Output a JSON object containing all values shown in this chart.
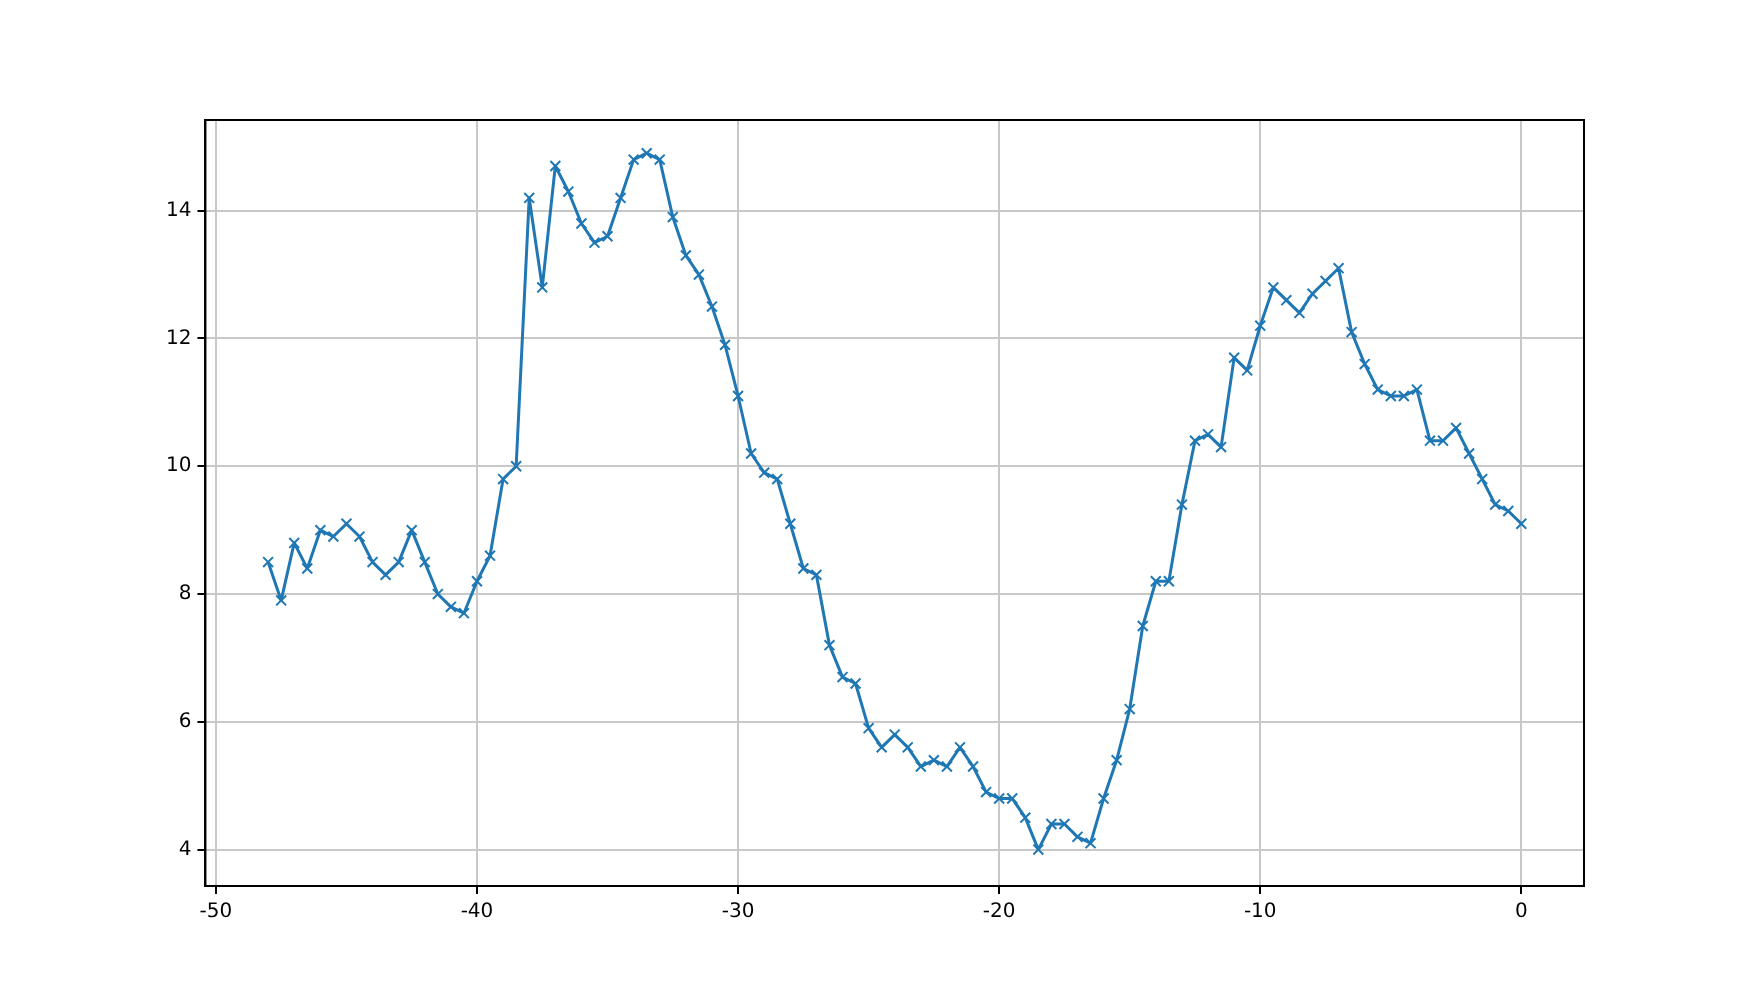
{
  "chart_data": {
    "type": "line",
    "marker": "cross",
    "grid": true,
    "x": [
      -48,
      -47.5,
      -47,
      -46.5,
      -46,
      -45.5,
      -45,
      -44.5,
      -44,
      -43.5,
      -43,
      -42.5,
      -42,
      -41.5,
      -41,
      -40.5,
      -40,
      -39.5,
      -39,
      -38.5,
      -38,
      -37.5,
      -37,
      -36.5,
      -36,
      -35.5,
      -35,
      -34.5,
      -34,
      -33.5,
      -33,
      -32.5,
      -32,
      -31.5,
      -31,
      -30.5,
      -30,
      -29.5,
      -29,
      -28.5,
      -28,
      -27.5,
      -27,
      -26.5,
      -26,
      -25.5,
      -25,
      -24.5,
      -24,
      -23.5,
      -23,
      -22.5,
      -22,
      -21.5,
      -21,
      -20.5,
      -20,
      -19.5,
      -19,
      -18.5,
      -18,
      -17.5,
      -17,
      -16.5,
      -16,
      -15.5,
      -15,
      -14.5,
      -14,
      -13.5,
      -13,
      -12.5,
      -12,
      -11.5,
      -11,
      -10.5,
      -10,
      -9.5,
      -9,
      -8.5,
      -8,
      -7.5,
      -7,
      -6.5,
      -6,
      -5.5,
      -5,
      -4.5,
      -4,
      -3.5,
      -3,
      -2.5,
      -2,
      -1.5,
      -1,
      -0.5,
      0
    ],
    "series": [
      {
        "color": "#1f77b4",
        "values": [
          8.5,
          7.9,
          8.8,
          8.4,
          9.0,
          8.9,
          9.1,
          8.9,
          8.5,
          8.3,
          8.5,
          9.0,
          8.5,
          8.0,
          7.8,
          7.7,
          8.2,
          8.6,
          9.8,
          10.0,
          14.2,
          12.8,
          14.7,
          14.3,
          13.8,
          13.5,
          13.6,
          14.2,
          14.8,
          14.9,
          14.8,
          13.9,
          13.3,
          13.0,
          12.5,
          11.9,
          11.1,
          10.2,
          9.9,
          9.8,
          9.1,
          8.4,
          8.3,
          7.2,
          6.7,
          6.6,
          5.9,
          5.6,
          5.8,
          5.6,
          5.3,
          5.4,
          5.3,
          5.6,
          5.3,
          4.9,
          4.8,
          4.8,
          4.5,
          4.0,
          4.4,
          4.4,
          4.2,
          4.1,
          4.8,
          5.4,
          6.2,
          7.5,
          8.2,
          8.2,
          9.4,
          10.4,
          10.5,
          10.3,
          11.7,
          11.5,
          12.2,
          12.8,
          12.6,
          12.4,
          12.7,
          12.9,
          13.1,
          12.1,
          11.6,
          11.2,
          11.1,
          11.1,
          11.2,
          10.4,
          10.4,
          10.6,
          10.2,
          9.8,
          9.4,
          9.3,
          9.1
        ]
      }
    ],
    "xlim": [
      -50.4,
      2.4
    ],
    "xticks": [
      -50,
      -40,
      -30,
      -20,
      -10,
      0
    ],
    "ylim": [
      3.43,
      15.42
    ],
    "yticks": [
      4,
      6,
      8,
      10,
      12,
      14
    ]
  }
}
